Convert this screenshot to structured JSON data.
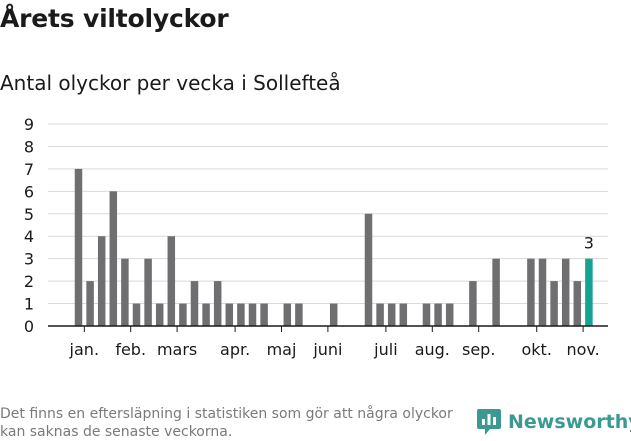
{
  "header": {
    "title": "Årets viltolyckor",
    "subtitle": "Antal olyckor per vecka i Sollefteå"
  },
  "footer": {
    "note": "Det finns en eftersläpning i statistiken som gör att några olyckor kan saknas de senaste veckorna.",
    "brand": "Newsworthy",
    "brand_icon": "newsworthy-logo-icon"
  },
  "colors": {
    "bar": "#6f6f72",
    "highlight": "#16a394",
    "grid": "#d9d9d9",
    "brand": "#3a9a93"
  },
  "chart_data": {
    "type": "bar",
    "title": "Antal olyckor per vecka i Sollefteå",
    "xlabel": "",
    "ylabel": "",
    "ylim": [
      0,
      9
    ],
    "yticks": [
      0,
      1,
      2,
      3,
      4,
      5,
      6,
      7,
      8,
      9
    ],
    "grid": true,
    "weeks": [
      1,
      2,
      3,
      4,
      5,
      6,
      7,
      8,
      9,
      10,
      11,
      12,
      13,
      14,
      15,
      16,
      17,
      18,
      19,
      20,
      21,
      22,
      23,
      24,
      25,
      26,
      27,
      28,
      29,
      30,
      31,
      32,
      33,
      34,
      35,
      36,
      37,
      38,
      39,
      40,
      41,
      42,
      43,
      44,
      45
    ],
    "values": [
      7,
      2,
      4,
      6,
      3,
      1,
      3,
      1,
      4,
      1,
      2,
      1,
      2,
      1,
      1,
      1,
      1,
      0,
      1,
      1,
      0,
      0,
      1,
      0,
      0,
      5,
      1,
      1,
      1,
      0,
      1,
      1,
      1,
      0,
      2,
      0,
      3,
      0,
      0,
      3,
      3,
      2,
      3,
      2,
      3
    ],
    "highlight_index": 44,
    "highlight_label": "3",
    "month_labels": [
      {
        "label": "jan.",
        "week": 1.5
      },
      {
        "label": "feb.",
        "week": 5.5
      },
      {
        "label": "mars",
        "week": 9.5
      },
      {
        "label": "apr.",
        "week": 14.5
      },
      {
        "label": "maj",
        "week": 18.5
      },
      {
        "label": "juni",
        "week": 22.5
      },
      {
        "label": "juli",
        "week": 27.5
      },
      {
        "label": "aug.",
        "week": 31.5
      },
      {
        "label": "sep.",
        "week": 35.5
      },
      {
        "label": "okt.",
        "week": 40.5
      },
      {
        "label": "nov.",
        "week": 44.5
      }
    ]
  }
}
